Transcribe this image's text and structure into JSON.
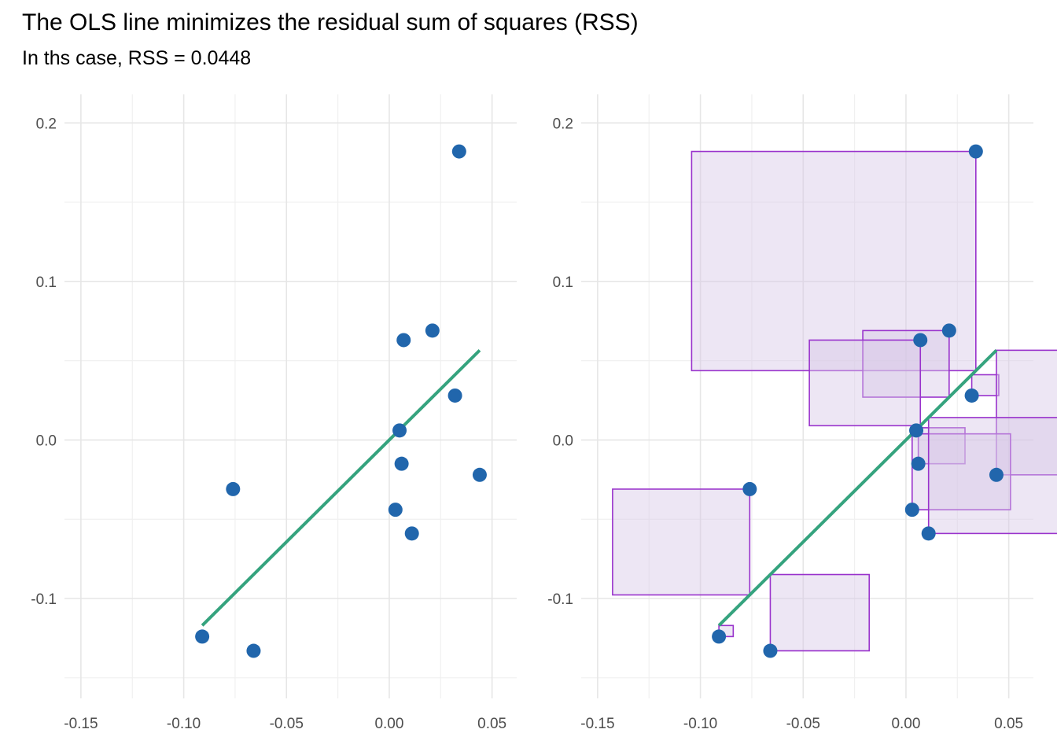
{
  "title": "The OLS line minimizes the residual sum of squares (RSS)",
  "subtitle": "In ths case, RSS = 0.0448",
  "chart_data": {
    "type": "scatter",
    "xlim": [
      -0.158,
      0.062
    ],
    "ylim": [
      -0.163,
      0.218
    ],
    "x_ticks": [
      -0.15,
      -0.1,
      -0.05,
      0.0,
      0.05
    ],
    "x_tick_labels": [
      "-0.15",
      "-0.10",
      "-0.05",
      "0.00",
      "0.05"
    ],
    "y_ticks": [
      -0.1,
      0.0,
      0.1,
      0.2
    ],
    "y_tick_labels": [
      "-0.1",
      "0.0",
      "0.1",
      "0.2"
    ],
    "grid": true,
    "points": [
      {
        "x": 0.034,
        "y": 0.182
      },
      {
        "x": 0.021,
        "y": 0.069
      },
      {
        "x": 0.007,
        "y": 0.063
      },
      {
        "x": 0.032,
        "y": 0.028
      },
      {
        "x": 0.005,
        "y": 0.006
      },
      {
        "x": 0.006,
        "y": -0.015
      },
      {
        "x": 0.044,
        "y": -0.022
      },
      {
        "x": -0.076,
        "y": -0.031
      },
      {
        "x": 0.003,
        "y": -0.044
      },
      {
        "x": 0.011,
        "y": -0.059
      },
      {
        "x": -0.091,
        "y": -0.124
      },
      {
        "x": -0.066,
        "y": -0.133
      }
    ],
    "ols_line": {
      "intercept": 0.0,
      "slope": 1.286,
      "x_range": [
        -0.091,
        0.044
      ]
    },
    "colors": {
      "point": "#2166ac",
      "line": "#35a37e",
      "square_stroke": "#9932cc",
      "square_fill": "#d8c8e6"
    },
    "panels": [
      {
        "name": "scatter-with-ols-line",
        "show_squares": false
      },
      {
        "name": "residual-squares",
        "show_squares": true
      }
    ]
  }
}
